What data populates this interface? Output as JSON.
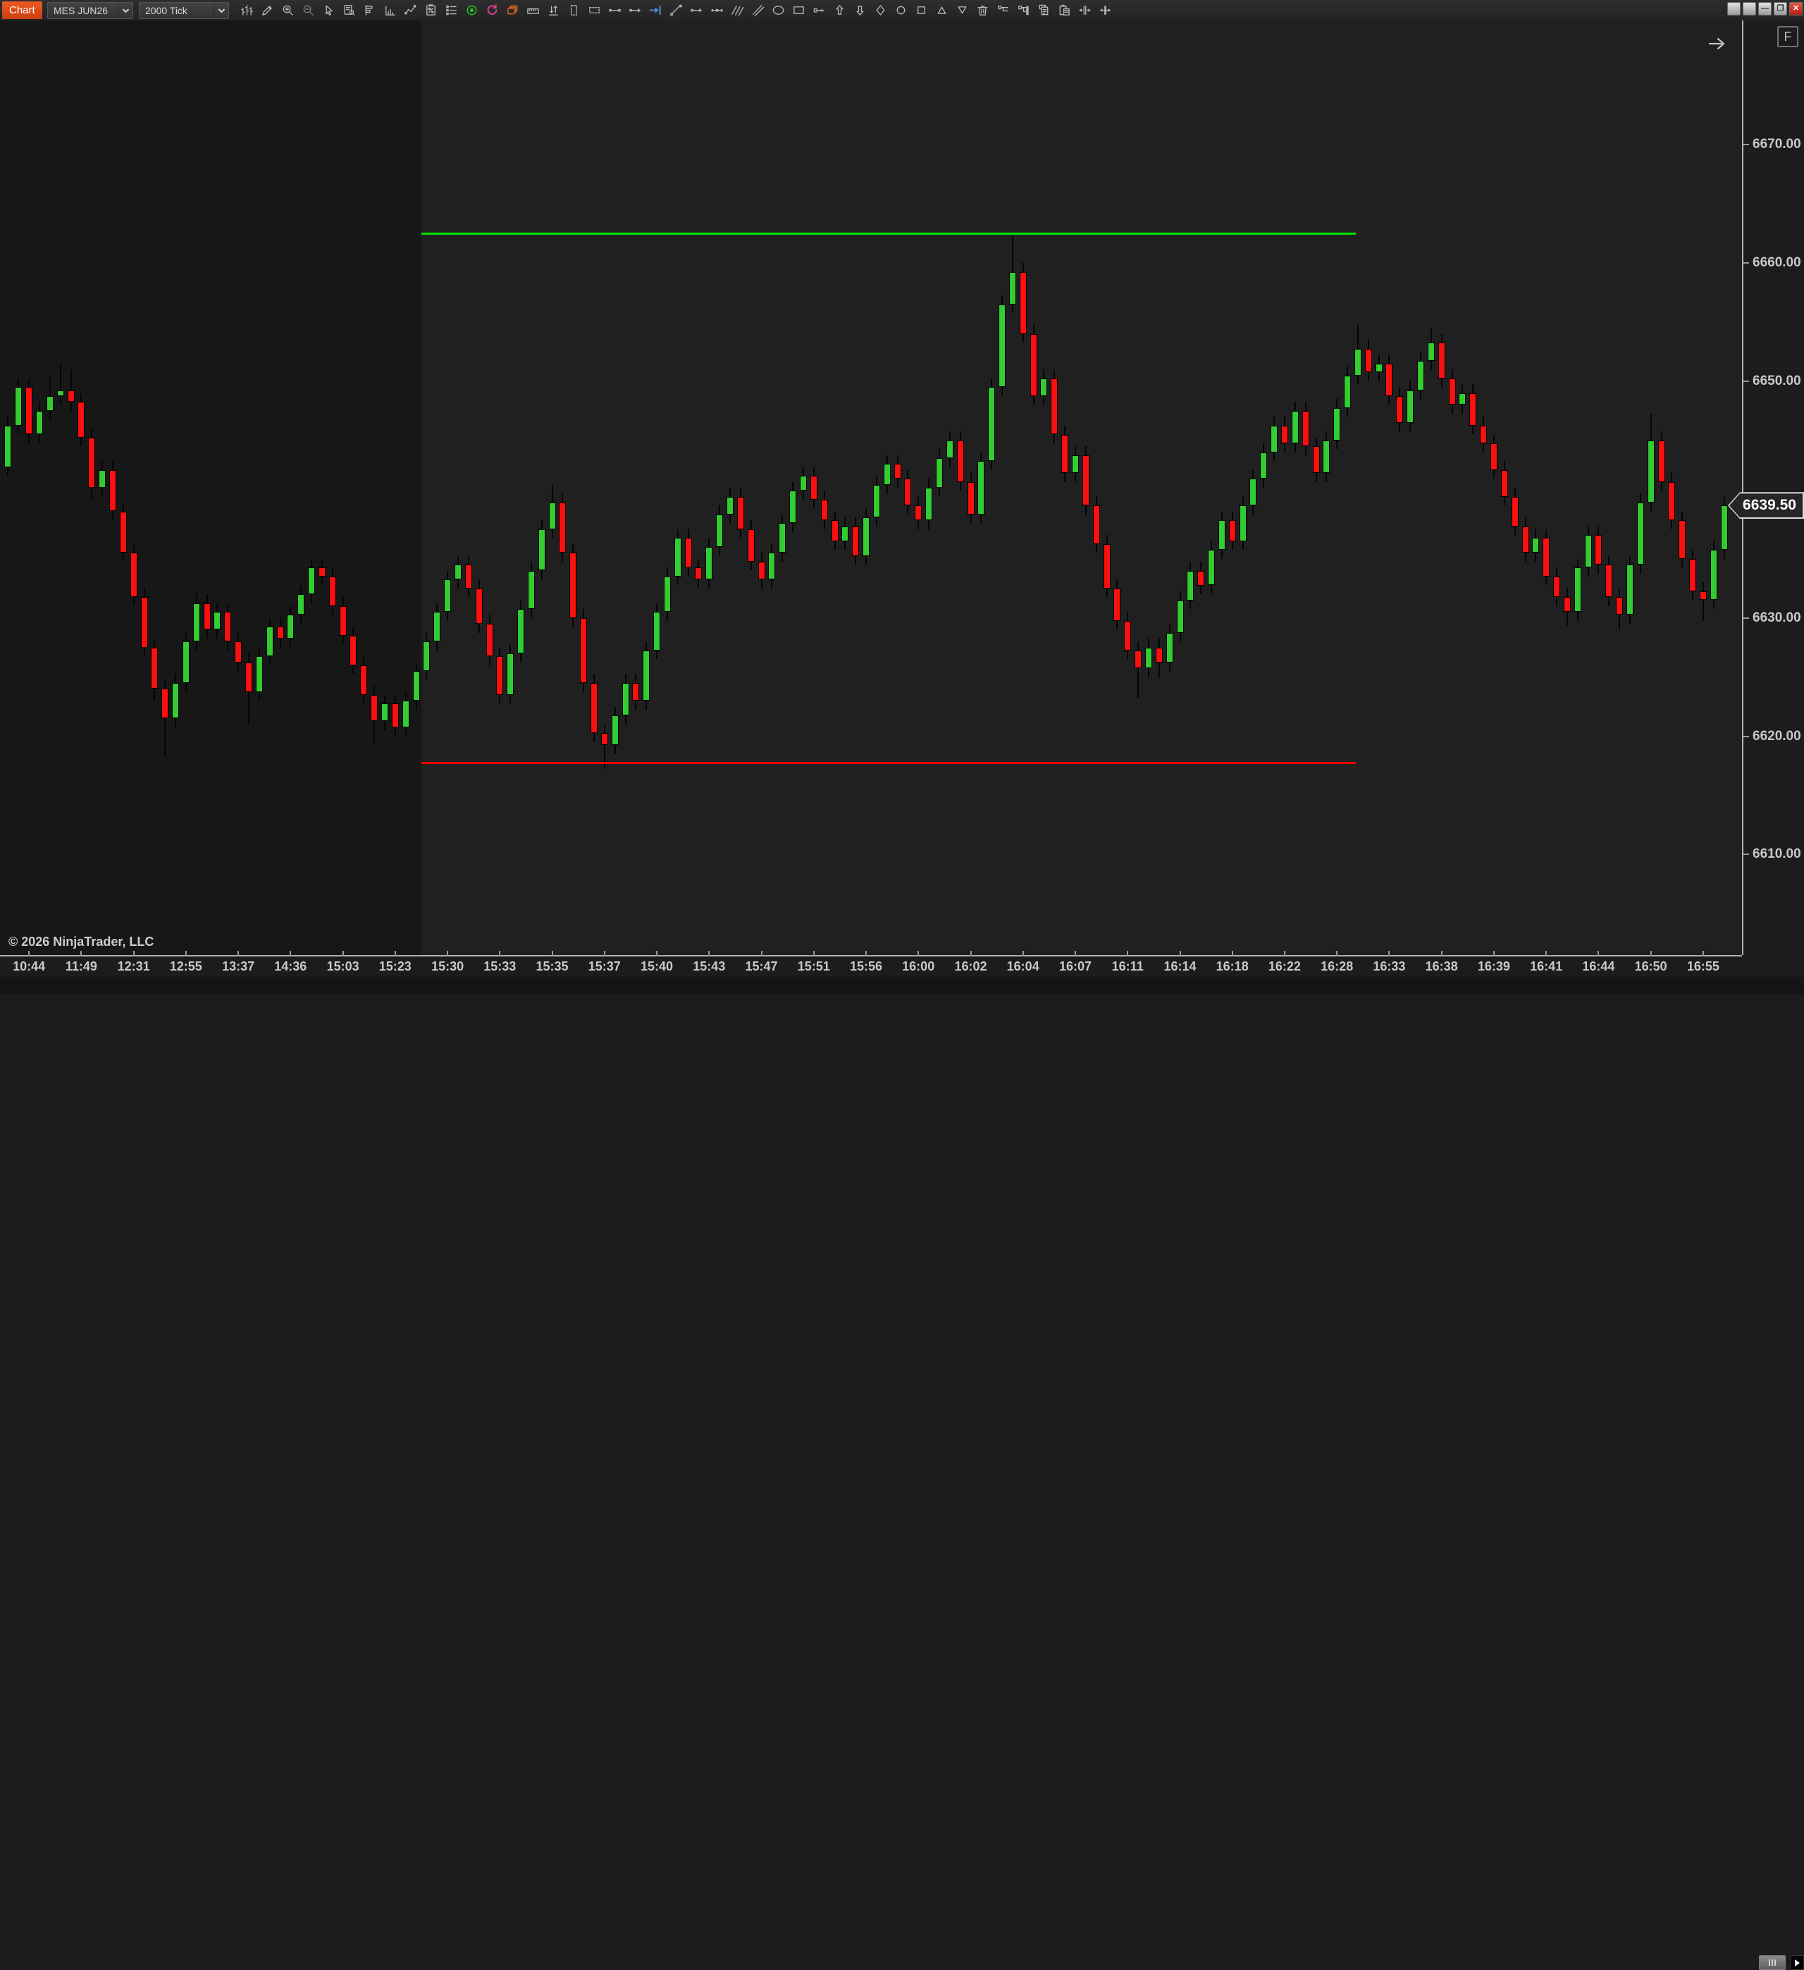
{
  "toolbar": {
    "tab_label": "Chart",
    "instrument": "MES JUN26",
    "period": "2000 Tick",
    "icons": [
      "bar-chart-icon",
      "pencil-icon",
      "zoom-in-icon",
      "zoom-out-icon",
      "cursor-icon",
      "data-box-icon",
      "chart-objects-icon",
      "indicator-histogram-icon",
      "zigzag-indicator-icon",
      "strategy-analyzer-icon",
      "properties-list-icon",
      "record-icon",
      "refresh-icon",
      "layers-icon",
      "ruler-icon",
      "sort-arrows-icon",
      "vertical-marquee-icon",
      "horizontal-marquee-icon",
      "line-segment-icon",
      "ray-icon",
      "go-to-end-icon",
      "trend-line-icon",
      "horizontal-ray-icon",
      "extended-line-icon",
      "parallel-lines-icon",
      "parallel-channel-icon",
      "ellipse-icon",
      "rectangle-icon",
      "price-label-icon",
      "arrow-up-icon",
      "arrow-down-icon",
      "diamond-icon",
      "circle-marker-icon",
      "square-marker-icon",
      "triangle-up-icon",
      "triangle-down-icon",
      "trash-icon",
      "order-lines-icon",
      "order-fill-icon",
      "copy-icon",
      "paste-icon",
      "collapse-bars-icon",
      "expand-bars-icon"
    ]
  },
  "window": {
    "controls": [
      {
        "name": "window-button-1",
        "glyph": "",
        "type": "plain"
      },
      {
        "name": "window-button-2",
        "glyph": "",
        "type": "plain"
      },
      {
        "name": "minimize-button",
        "glyph": "—",
        "type": "plain"
      },
      {
        "name": "restore-button",
        "glyph": "❐",
        "type": "plain"
      },
      {
        "name": "close-button",
        "glyph": "✕",
        "type": "close"
      }
    ]
  },
  "chart": {
    "copyright": "© 2026 NinjaTrader, LLC",
    "f_button": "F",
    "last_price_label": "6639.50",
    "colors": {
      "up": "#33cc33",
      "down": "#fb0f0f",
      "wick": "#050505",
      "bg_session_prior": "#171717",
      "bg_session_current": "#202020",
      "hline_high": "#00e600",
      "hline_low": "#fb0000",
      "axis_text": "#c9c9c9",
      "marker_bg": "#262626",
      "marker_border": "#d9d9d9"
    }
  },
  "chart_data": {
    "type": "candlestick",
    "title": "MES JUN26 2000 Tick chart",
    "instrument": "MES JUN26",
    "period": "2000 Tick",
    "last_price": 6639.5,
    "y_min": 6601.5,
    "y_max": 6680.5,
    "y_ticks": [
      6670,
      6660,
      6650,
      6640,
      6630,
      6620,
      6610
    ],
    "x_labels": [
      "10:44",
      "11:49",
      "12:31",
      "12:55",
      "13:37",
      "14:36",
      "15:03",
      "15:23",
      "15:30",
      "15:33",
      "15:35",
      "15:37",
      "15:40",
      "15:43",
      "15:47",
      "15:51",
      "15:56",
      "16:00",
      "16:02",
      "16:04",
      "16:07",
      "16:11",
      "16:14",
      "16:18",
      "16:22",
      "16:28",
      "16:33",
      "16:38",
      "16:39",
      "16:41",
      "16:44",
      "16:50",
      "16:55"
    ],
    "x_label_start_index": 2,
    "x_label_every": 5,
    "session_split_bar": 40,
    "horizontal_lines": [
      {
        "name": "high-line",
        "price": 6662.5,
        "color": "#00e600",
        "start_bar": 40,
        "end_bar": 129.3
      },
      {
        "name": "low-line",
        "price": 6617.75,
        "color": "#fb0000",
        "start_bar": 40,
        "end_bar": 129.3
      }
    ],
    "candles": [
      [
        6642.75,
        6647.0,
        6642.0,
        6646.25
      ],
      [
        6646.25,
        6650.25,
        6645.5,
        6649.5
      ],
      [
        6649.5,
        6650.25,
        6644.75,
        6645.5
      ],
      [
        6645.5,
        6648.25,
        6644.75,
        6647.5
      ],
      [
        6647.5,
        6650.5,
        6646.75,
        6648.75
      ],
      [
        6648.75,
        6651.5,
        6648.0,
        6649.25
      ],
      [
        6649.25,
        6651.0,
        6647.5,
        6648.25
      ],
      [
        6648.25,
        6649.0,
        6644.5,
        6645.25
      ],
      [
        6645.25,
        6646.0,
        6640.0,
        6641.0
      ],
      [
        6641.0,
        6643.25,
        6640.25,
        6642.5
      ],
      [
        6642.5,
        6643.25,
        6638.25,
        6639.0
      ],
      [
        6639.0,
        6639.75,
        6634.75,
        6635.5
      ],
      [
        6635.5,
        6636.25,
        6631.0,
        6631.75
      ],
      [
        6631.75,
        6632.5,
        6626.75,
        6627.5
      ],
      [
        6627.5,
        6628.25,
        6623.0,
        6624.0
      ],
      [
        6624.0,
        6624.75,
        6618.25,
        6621.5
      ],
      [
        6621.5,
        6625.25,
        6620.75,
        6624.5
      ],
      [
        6624.5,
        6628.75,
        6623.75,
        6628.0
      ],
      [
        6628.0,
        6632.0,
        6627.25,
        6631.25
      ],
      [
        6631.25,
        6632.0,
        6628.25,
        6629.0
      ],
      [
        6629.0,
        6631.25,
        6628.25,
        6630.5
      ],
      [
        6630.5,
        6631.25,
        6627.25,
        6628.0
      ],
      [
        6628.0,
        6628.75,
        6625.5,
        6626.25
      ],
      [
        6626.25,
        6627.0,
        6621.0,
        6623.75
      ],
      [
        6623.75,
        6627.5,
        6623.0,
        6626.75
      ],
      [
        6626.75,
        6630.0,
        6626.0,
        6629.25
      ],
      [
        6629.25,
        6630.0,
        6627.5,
        6628.25
      ],
      [
        6628.25,
        6631.0,
        6627.5,
        6630.25
      ],
      [
        6630.25,
        6632.75,
        6629.5,
        6632.0
      ],
      [
        6632.0,
        6635.0,
        6631.25,
        6634.25
      ],
      [
        6634.25,
        6635.0,
        6632.75,
        6633.5
      ],
      [
        6633.5,
        6634.25,
        6630.25,
        6631.0
      ],
      [
        6631.0,
        6631.75,
        6627.75,
        6628.5
      ],
      [
        6628.5,
        6629.25,
        6625.25,
        6626.0
      ],
      [
        6626.0,
        6626.75,
        6622.75,
        6623.5
      ],
      [
        6623.5,
        6624.25,
        6619.25,
        6621.25
      ],
      [
        6621.25,
        6623.5,
        6620.5,
        6622.75
      ],
      [
        6622.75,
        6623.5,
        6620.0,
        6620.75
      ],
      [
        6620.75,
        6623.75,
        6620.0,
        6623.0
      ],
      [
        6623.0,
        6626.25,
        6622.25,
        6625.5
      ],
      [
        6625.5,
        6628.75,
        6624.75,
        6628.0
      ],
      [
        6628.0,
        6631.25,
        6627.25,
        6630.5
      ],
      [
        6630.5,
        6634.0,
        6629.75,
        6633.25
      ],
      [
        6633.25,
        6635.25,
        6632.5,
        6634.5
      ],
      [
        6634.5,
        6635.25,
        6631.75,
        6632.5
      ],
      [
        6632.5,
        6633.25,
        6628.75,
        6629.5
      ],
      [
        6629.5,
        6630.25,
        6626.0,
        6626.75
      ],
      [
        6626.75,
        6627.5,
        6622.75,
        6623.5
      ],
      [
        6623.5,
        6627.75,
        6622.75,
        6627.0
      ],
      [
        6627.0,
        6631.5,
        6626.25,
        6630.75
      ],
      [
        6630.75,
        6634.75,
        6630.0,
        6634.0
      ],
      [
        6634.0,
        6638.25,
        6633.25,
        6637.5
      ],
      [
        6637.5,
        6641.25,
        6636.75,
        6639.75
      ],
      [
        6639.75,
        6640.5,
        6634.75,
        6635.5
      ],
      [
        6635.5,
        6636.25,
        6629.25,
        6630.0
      ],
      [
        6630.0,
        6630.75,
        6623.75,
        6624.5
      ],
      [
        6624.5,
        6625.25,
        6619.5,
        6620.25
      ],
      [
        6620.25,
        6621.0,
        6617.25,
        6619.25
      ],
      [
        6619.25,
        6622.5,
        6618.5,
        6621.75
      ],
      [
        6621.75,
        6625.25,
        6621.0,
        6624.5
      ],
      [
        6624.5,
        6625.25,
        6622.25,
        6623.0
      ],
      [
        6623.0,
        6628.0,
        6622.25,
        6627.25
      ],
      [
        6627.25,
        6631.25,
        6626.5,
        6630.5
      ],
      [
        6630.5,
        6634.25,
        6629.75,
        6633.5
      ],
      [
        6633.5,
        6637.5,
        6632.75,
        6636.75
      ],
      [
        6636.75,
        6637.5,
        6633.5,
        6634.25
      ],
      [
        6634.25,
        6635.0,
        6632.5,
        6633.25
      ],
      [
        6633.25,
        6636.75,
        6632.5,
        6636.0
      ],
      [
        6636.0,
        6639.5,
        6635.25,
        6638.75
      ],
      [
        6638.75,
        6641.0,
        6638.0,
        6640.25
      ],
      [
        6640.25,
        6641.0,
        6636.75,
        6637.5
      ],
      [
        6637.5,
        6638.25,
        6634.0,
        6634.75
      ],
      [
        6634.75,
        6635.5,
        6632.5,
        6633.25
      ],
      [
        6633.25,
        6636.25,
        6632.5,
        6635.5
      ],
      [
        6635.5,
        6638.75,
        6634.75,
        6638.0
      ],
      [
        6638.0,
        6641.5,
        6637.25,
        6640.75
      ],
      [
        6640.75,
        6642.75,
        6640.0,
        6642.0
      ],
      [
        6642.0,
        6642.75,
        6639.25,
        6640.0
      ],
      [
        6640.0,
        6640.75,
        6637.5,
        6638.25
      ],
      [
        6638.25,
        6639.0,
        6635.75,
        6636.5
      ],
      [
        6636.5,
        6638.5,
        6635.75,
        6637.75
      ],
      [
        6637.75,
        6638.5,
        6634.5,
        6635.25
      ],
      [
        6635.25,
        6639.25,
        6634.5,
        6638.5
      ],
      [
        6638.5,
        6642.0,
        6637.75,
        6641.25
      ],
      [
        6641.25,
        6643.75,
        6640.5,
        6643.0
      ],
      [
        6643.0,
        6643.75,
        6641.0,
        6641.75
      ],
      [
        6641.75,
        6642.5,
        6638.75,
        6639.5
      ],
      [
        6639.5,
        6640.25,
        6637.5,
        6638.25
      ],
      [
        6638.25,
        6641.75,
        6637.5,
        6641.0
      ],
      [
        6641.0,
        6644.25,
        6640.25,
        6643.5
      ],
      [
        6643.5,
        6645.75,
        6642.75,
        6645.0
      ],
      [
        6645.0,
        6645.75,
        6640.75,
        6641.5
      ],
      [
        6641.5,
        6642.25,
        6638.0,
        6638.75
      ],
      [
        6638.75,
        6644.0,
        6638.0,
        6643.25
      ],
      [
        6643.25,
        6650.25,
        6642.5,
        6649.5
      ],
      [
        6649.5,
        6657.25,
        6648.75,
        6656.5
      ],
      [
        6656.5,
        6662.25,
        6655.75,
        6659.25
      ],
      [
        6659.25,
        6660.0,
        6653.25,
        6654.0
      ],
      [
        6654.0,
        6654.75,
        6648.0,
        6648.75
      ],
      [
        6648.75,
        6651.0,
        6648.0,
        6650.25
      ],
      [
        6650.25,
        6651.0,
        6644.75,
        6645.5
      ],
      [
        6645.5,
        6646.25,
        6641.5,
        6642.25
      ],
      [
        6642.25,
        6644.5,
        6641.5,
        6643.75
      ],
      [
        6643.75,
        6644.5,
        6638.75,
        6639.5
      ],
      [
        6639.5,
        6640.25,
        6635.5,
        6636.25
      ],
      [
        6636.25,
        6637.0,
        6631.75,
        6632.5
      ],
      [
        6632.5,
        6633.25,
        6629.0,
        6629.75
      ],
      [
        6629.75,
        6630.5,
        6626.5,
        6627.25
      ],
      [
        6627.25,
        6628.0,
        6623.25,
        6625.75
      ],
      [
        6625.75,
        6628.25,
        6625.0,
        6627.5
      ],
      [
        6627.5,
        6628.25,
        6625.0,
        6626.25
      ],
      [
        6626.25,
        6629.5,
        6625.5,
        6628.75
      ],
      [
        6628.75,
        6632.25,
        6628.0,
        6631.5
      ],
      [
        6631.5,
        6634.75,
        6630.75,
        6634.0
      ],
      [
        6634.0,
        6634.75,
        6632.0,
        6632.75
      ],
      [
        6632.75,
        6636.5,
        6632.0,
        6635.75
      ],
      [
        6635.75,
        6639.0,
        6635.0,
        6638.25
      ],
      [
        6638.25,
        6639.0,
        6635.75,
        6636.5
      ],
      [
        6636.5,
        6640.25,
        6635.75,
        6639.5
      ],
      [
        6639.5,
        6642.5,
        6638.75,
        6641.75
      ],
      [
        6641.75,
        6644.75,
        6641.0,
        6644.0
      ],
      [
        6644.0,
        6647.0,
        6643.25,
        6646.25
      ],
      [
        6646.25,
        6647.0,
        6644.0,
        6644.75
      ],
      [
        6644.75,
        6648.25,
        6644.0,
        6647.5
      ],
      [
        6647.5,
        6648.25,
        6643.75,
        6644.5
      ],
      [
        6644.5,
        6645.25,
        6641.5,
        6642.25
      ],
      [
        6642.25,
        6645.75,
        6641.5,
        6645.0
      ],
      [
        6645.0,
        6648.5,
        6644.25,
        6647.75
      ],
      [
        6647.75,
        6651.25,
        6647.0,
        6650.5
      ],
      [
        6650.5,
        6654.75,
        6649.75,
        6652.75
      ],
      [
        6652.75,
        6653.5,
        6650.0,
        6650.75
      ],
      [
        6650.75,
        6652.25,
        6650.0,
        6651.5
      ],
      [
        6651.5,
        6652.25,
        6648.0,
        6648.75
      ],
      [
        6648.75,
        6649.5,
        6645.75,
        6646.5
      ],
      [
        6646.5,
        6650.0,
        6645.75,
        6649.25
      ],
      [
        6649.25,
        6652.5,
        6648.5,
        6651.75
      ],
      [
        6651.75,
        6654.5,
        6651.0,
        6653.25
      ],
      [
        6653.25,
        6654.0,
        6649.5,
        6650.25
      ],
      [
        6650.25,
        6651.0,
        6647.25,
        6648.0
      ],
      [
        6648.0,
        6649.75,
        6647.25,
        6649.0
      ],
      [
        6649.0,
        6649.75,
        6645.5,
        6646.25
      ],
      [
        6646.25,
        6647.0,
        6644.0,
        6644.75
      ],
      [
        6644.75,
        6645.5,
        6641.75,
        6642.5
      ],
      [
        6642.5,
        6643.25,
        6639.5,
        6640.25
      ],
      [
        6640.25,
        6641.0,
        6637.0,
        6637.75
      ],
      [
        6637.75,
        6638.5,
        6634.75,
        6635.5
      ],
      [
        6635.5,
        6637.5,
        6634.75,
        6636.75
      ],
      [
        6636.75,
        6637.5,
        6632.75,
        6633.5
      ],
      [
        6633.5,
        6634.25,
        6631.0,
        6631.75
      ],
      [
        6631.75,
        6632.5,
        6629.25,
        6630.5
      ],
      [
        6630.5,
        6635.0,
        6629.75,
        6634.25
      ],
      [
        6634.25,
        6637.75,
        6633.5,
        6637.0
      ],
      [
        6637.0,
        6637.75,
        6633.75,
        6634.5
      ],
      [
        6634.5,
        6635.25,
        6631.0,
        6631.75
      ],
      [
        6631.75,
        6632.5,
        6629.0,
        6630.25
      ],
      [
        6630.25,
        6635.25,
        6629.5,
        6634.5
      ],
      [
        6634.5,
        6640.5,
        6633.75,
        6639.75
      ],
      [
        6639.75,
        6647.25,
        6639.0,
        6645.0
      ],
      [
        6645.0,
        6645.75,
        6640.75,
        6641.5
      ],
      [
        6641.5,
        6642.25,
        6637.5,
        6638.25
      ],
      [
        6638.25,
        6639.0,
        6634.25,
        6635.0
      ],
      [
        6635.0,
        6635.75,
        6631.5,
        6632.25
      ],
      [
        6632.25,
        6633.0,
        6629.75,
        6631.5
      ],
      [
        6631.5,
        6636.5,
        6630.75,
        6635.75
      ],
      [
        6635.75,
        6640.25,
        6635.0,
        6639.5
      ]
    ]
  }
}
